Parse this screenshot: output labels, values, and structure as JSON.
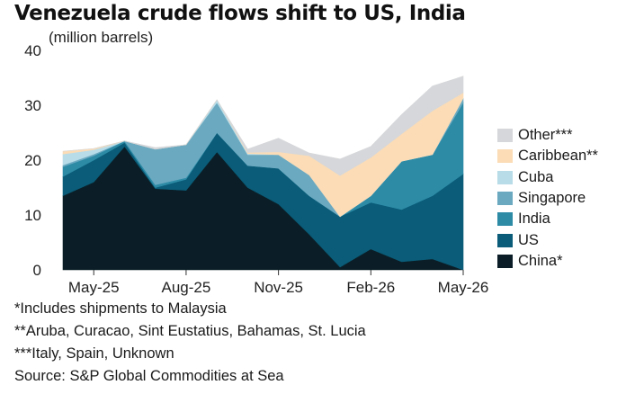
{
  "chart_data": {
    "type": "area",
    "stacked": true,
    "title": "Venezuela crude flows shift to US, India",
    "ylabel": "(million barrels)",
    "xlabel": "",
    "ylim": [
      0,
      40
    ],
    "yticks": [
      0,
      10,
      20,
      30,
      40
    ],
    "x": [
      "Apr-25",
      "May-25",
      "Jun-25",
      "Jul-25",
      "Aug-25",
      "Sep-25",
      "Oct-25",
      "Nov-25",
      "Dec-25",
      "Jan-26",
      "Feb-26",
      "Mar-26",
      "Apr-26",
      "May-26"
    ],
    "xtick_labels": [
      {
        "x": "May-25",
        "label": "May-25"
      },
      {
        "x": "Aug-25",
        "label": "Aug-25"
      },
      {
        "x": "Nov-25",
        "label": "Nov-25"
      },
      {
        "x": "Feb-26",
        "label": "Feb-26"
      },
      {
        "x": "May-26",
        "label": "May-26"
      }
    ],
    "grid": false,
    "legend_position": "right",
    "series": [
      {
        "name": "China*",
        "color": "#0b1e27",
        "values": [
          13.5,
          16,
          22.5,
          14.8,
          14.5,
          21.5,
          15,
          12,
          6.5,
          0.5,
          3.8,
          1.5,
          2,
          0
        ]
      },
      {
        "name": "US",
        "color": "#0a5c78",
        "values": [
          3.5,
          4,
          0.7,
          0.2,
          2,
          3.5,
          4,
          6.5,
          7,
          9.2,
          8.5,
          9.5,
          11.5,
          17.5
        ]
      },
      {
        "name": "India",
        "color": "#2d8ba6",
        "values": [
          1.8,
          0.8,
          0.3,
          0.5,
          0.3,
          0,
          0,
          0,
          0,
          0,
          1.2,
          8.8,
          7.5,
          13
        ]
      },
      {
        "name": "Singapore",
        "color": "#6ba9c0",
        "values": [
          0.3,
          0.3,
          0,
          6.5,
          6,
          5.5,
          2,
          2.5,
          3.8,
          0,
          0,
          0,
          0,
          0.8
        ]
      },
      {
        "name": "Cuba",
        "color": "#b8dce8",
        "values": [
          2,
          0.8,
          0,
          0,
          0,
          0.5,
          0.2,
          0,
          0,
          0,
          0,
          0,
          0,
          0
        ]
      },
      {
        "name": "Caribbean**",
        "color": "#fbdcb6",
        "values": [
          0.5,
          0.2,
          0,
          0,
          0,
          0,
          0.2,
          0.5,
          3.5,
          7.5,
          7,
          5,
          8,
          1
        ]
      },
      {
        "name": "Other***",
        "color": "#d6d7da",
        "values": [
          0,
          0,
          0,
          0.3,
          0,
          0,
          0.6,
          2.5,
          0.5,
          3,
          2,
          3.5,
          4.5,
          3
        ]
      }
    ]
  },
  "legend_order": [
    "Other***",
    "Caribbean**",
    "Cuba",
    "Singapore",
    "India",
    "US",
    "China*"
  ],
  "notes": [
    "*Includes shipments to Malaysia",
    "**Aruba, Curacao, Sint Eustatius, Bahamas, St. Lucia",
    "***Italy, Spain, Unknown",
    "Source: S&P Global Commodities at Sea"
  ]
}
